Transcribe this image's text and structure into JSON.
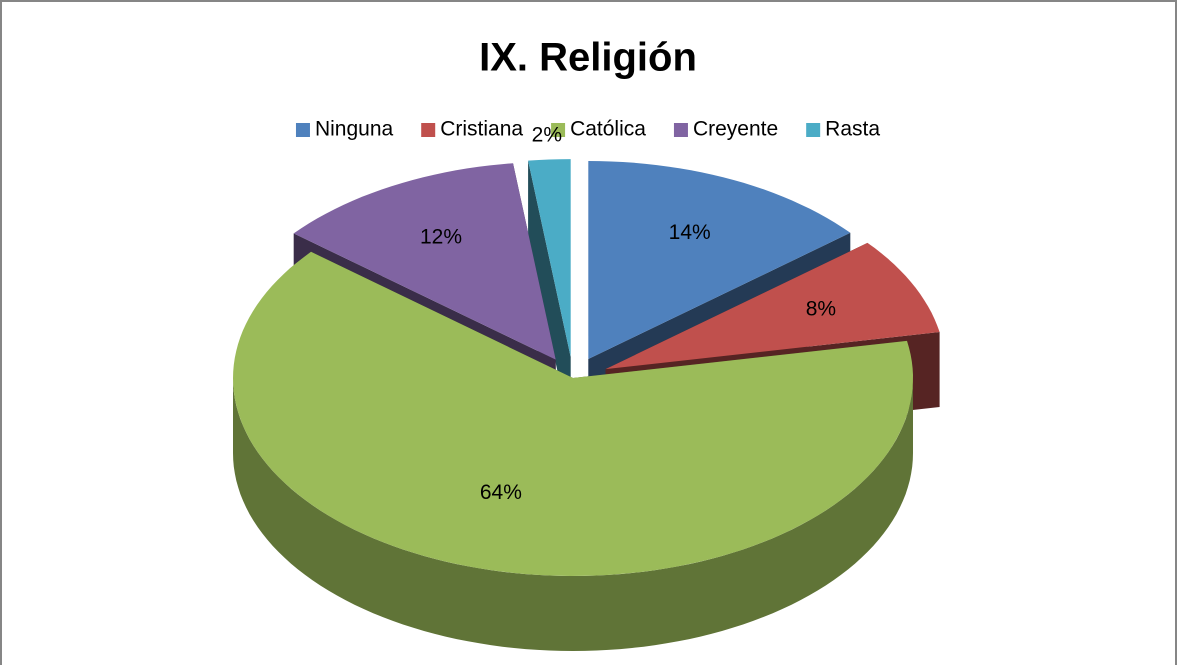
{
  "chart_data": {
    "type": "pie",
    "title": "IX. Religión",
    "categories": [
      "Ninguna",
      "Cristiana",
      "Católica",
      "Creyente",
      "Rasta"
    ],
    "values": [
      14,
      8,
      64,
      12,
      2
    ],
    "value_labels": [
      "14%",
      "8%",
      "64%",
      "12%",
      "2%"
    ],
    "colors": [
      "#4f81bd",
      "#c0504d",
      "#9bbb59",
      "#8064a2",
      "#4bacc6"
    ],
    "legend": "top"
  }
}
